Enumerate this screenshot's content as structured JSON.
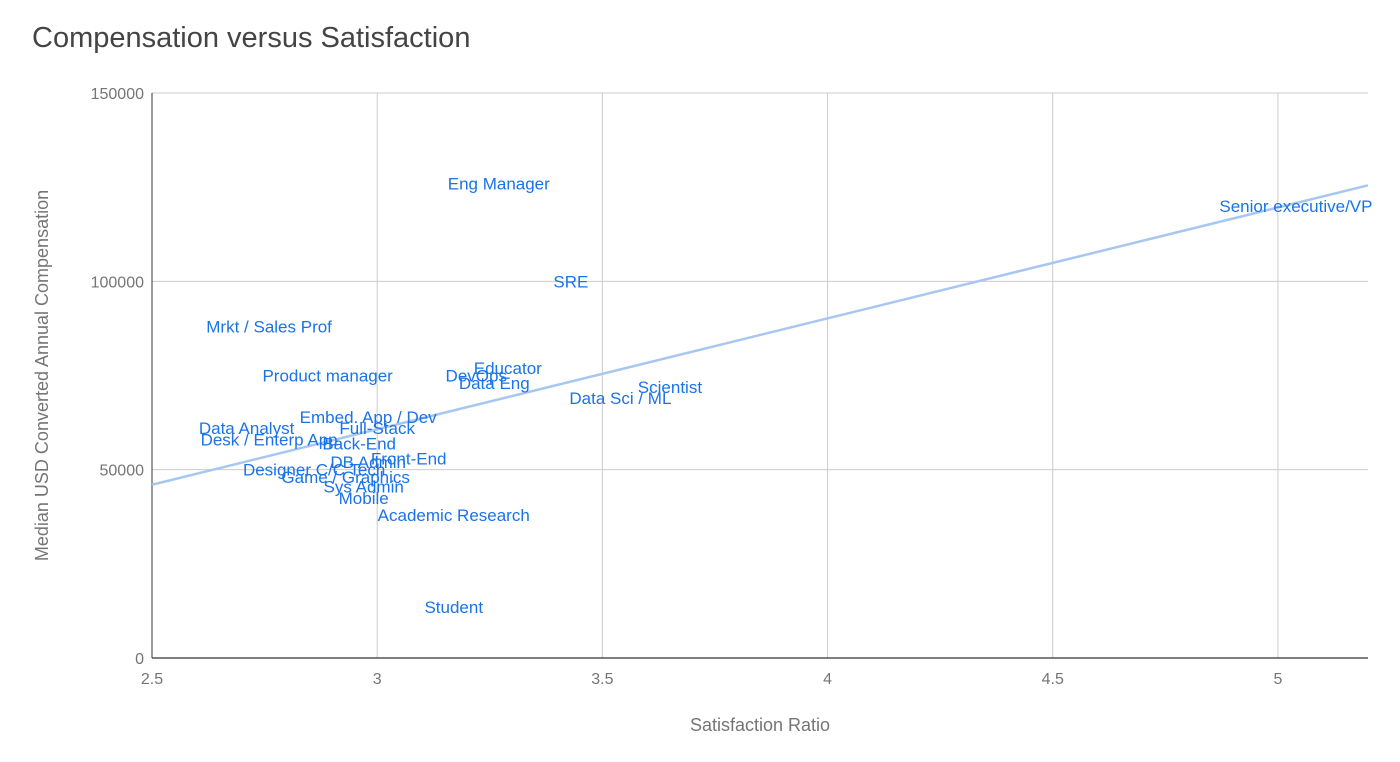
{
  "chart_data": {
    "type": "scatter",
    "title": "Compensation versus Satisfaction",
    "xlabel": "Satisfaction Ratio",
    "ylabel": "Median USD Converted Annual Compensation",
    "xlim": [
      2.5,
      5.2
    ],
    "ylim": [
      0,
      150000
    ],
    "x_ticks": [
      2.5,
      3,
      3.5,
      4,
      4.5,
      5
    ],
    "x_tick_labels": [
      "2.5",
      "3",
      "3.5",
      "4",
      "4.5",
      "5"
    ],
    "y_ticks": [
      0,
      50000,
      100000,
      150000
    ],
    "y_tick_labels": [
      "0",
      "50000",
      "100000",
      "150000"
    ],
    "grid": true,
    "point_color": "#1a73e8",
    "trendline": {
      "color": "#a8c7f0",
      "from": [
        2.5,
        46000
      ],
      "to": [
        5.2,
        125500
      ]
    },
    "points": [
      {
        "label": "Senior executive/VP",
        "x": 5.04,
        "y": 120000
      },
      {
        "label": "Eng Manager",
        "x": 3.27,
        "y": 126000
      },
      {
        "label": "SRE",
        "x": 3.43,
        "y": 100000
      },
      {
        "label": "Mrkt / Sales Prof",
        "x": 2.76,
        "y": 88000
      },
      {
        "label": "Product manager",
        "x": 2.89,
        "y": 75000
      },
      {
        "label": "Educator",
        "x": 3.29,
        "y": 77000
      },
      {
        "label": "DevOps",
        "x": 3.22,
        "y": 75000
      },
      {
        "label": "Data Eng",
        "x": 3.26,
        "y": 73000
      },
      {
        "label": "Scientist",
        "x": 3.65,
        "y": 72000
      },
      {
        "label": "Data Sci / ML",
        "x": 3.54,
        "y": 69000
      },
      {
        "label": "Embed. App / Dev",
        "x": 2.98,
        "y": 64000
      },
      {
        "label": "Data Analyst",
        "x": 2.71,
        "y": 61000
      },
      {
        "label": "Full-Stack",
        "x": 3.0,
        "y": 61000
      },
      {
        "label": "Desk / Enterp App",
        "x": 2.76,
        "y": 58000
      },
      {
        "label": "Back-End",
        "x": 2.96,
        "y": 57000
      },
      {
        "label": "Front-End",
        "x": 3.07,
        "y": 53000
      },
      {
        "label": "DB Admin",
        "x": 2.98,
        "y": 52000
      },
      {
        "label": "Designer C/C Tech",
        "x": 2.86,
        "y": 50000
      },
      {
        "label": "Game / Graphics",
        "x": 2.93,
        "y": 48000
      },
      {
        "label": "Sys Admin",
        "x": 2.97,
        "y": 45500
      },
      {
        "label": "Mobile",
        "x": 2.97,
        "y": 42500
      },
      {
        "label": "Academic Research",
        "x": 3.17,
        "y": 38000
      },
      {
        "label": "Student",
        "x": 3.17,
        "y": 13500
      }
    ]
  }
}
